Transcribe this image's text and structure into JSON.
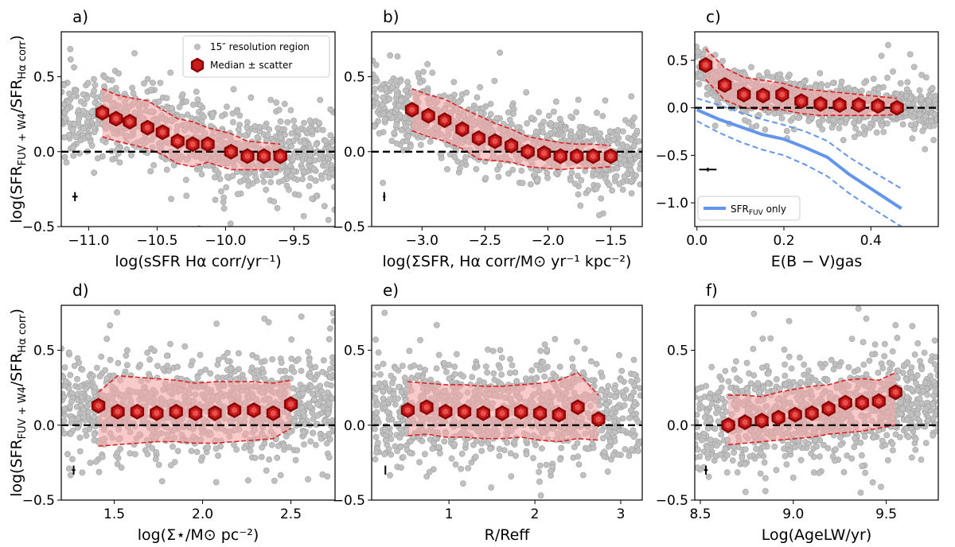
{
  "figure": {
    "ylabel": "log(SFR FUV + W4 / SFR Hα corr)",
    "ylabel_parts": {
      "pre": "log(SFR",
      "sub1": "FUV + W4",
      "mid": "/SFR",
      "sub2": "Hα corr",
      "post": ")"
    },
    "legend": {
      "scatter_label": "15″ resolution region",
      "median_label": "Median ± scatter",
      "blue_label_pre": "SFR",
      "blue_label_sub": "FUV",
      "blue_label_post": " only"
    },
    "colors": {
      "points": "#c0c0c0",
      "point_edge": "#a0a0a0",
      "median_fill": "#c81e1e",
      "median_edge": "#8b0000",
      "band_fill": "#f4a6a6",
      "band_edge": "#e02020",
      "blue": "#6495ed",
      "zero_line": "#000000"
    }
  },
  "chart_data": [
    {
      "panel": "a)",
      "type": "scatter",
      "xlabel": "log(sSFR Hα corr/yr⁻¹)",
      "xlim": [
        -11.2,
        -9.2
      ],
      "ylim": [
        -0.5,
        0.8
      ],
      "xticks": [
        -11.0,
        -10.5,
        -10.0,
        -9.5
      ],
      "xtick_labels": [
        "−11.0",
        "−10.5",
        "−10.0",
        "−9.5"
      ],
      "yticks": [
        -0.5,
        0.0,
        0.5
      ],
      "ytick_labels": [
        "−0.5",
        "0.0",
        "0.5"
      ],
      "scatter_center": [
        [
          -11.2,
          0.25
        ],
        [
          -10.9,
          0.24
        ],
        [
          -10.5,
          0.15
        ],
        [
          -10.0,
          0.02
        ],
        [
          -9.5,
          -0.03
        ],
        [
          -9.2,
          -0.03
        ]
      ],
      "scatter_sigma": 0.13,
      "scatter_count": 900,
      "errorbar": {
        "x": -11.1,
        "y": -0.3,
        "xerr": 0.02,
        "yerr": 0.03
      },
      "median": {
        "x": [
          -10.9,
          -10.8,
          -10.7,
          -10.57,
          -10.46,
          -10.35,
          -10.24,
          -10.13,
          -9.96,
          -9.84,
          -9.72,
          -9.6
        ],
        "y": [
          0.26,
          0.22,
          0.2,
          0.16,
          0.13,
          0.07,
          0.05,
          0.05,
          0.0,
          -0.03,
          -0.03,
          -0.03
        ],
        "upper": [
          0.42,
          0.38,
          0.36,
          0.34,
          0.28,
          0.22,
          0.2,
          0.16,
          0.12,
          0.07,
          0.06,
          0.05
        ],
        "lower": [
          0.1,
          0.07,
          0.05,
          0.02,
          -0.02,
          -0.08,
          -0.1,
          -0.07,
          -0.12,
          -0.12,
          -0.12,
          -0.12
        ]
      }
    },
    {
      "panel": "b)",
      "type": "scatter",
      "xlabel": "log(ΣSFR, Hα corr/M⊙ yr⁻¹ kpc⁻²)",
      "xlim": [
        -3.4,
        -1.25
      ],
      "ylim": [
        -0.5,
        0.8
      ],
      "xticks": [
        -3.0,
        -2.5,
        -2.0,
        -1.5
      ],
      "xtick_labels": [
        "−3.0",
        "−2.5",
        "−2.0",
        "−1.5"
      ],
      "yticks": [
        -0.5,
        0.0,
        0.5
      ],
      "ytick_labels": [
        "−0.5",
        "0.0",
        "0.5"
      ],
      "scatter_center": [
        [
          -3.4,
          0.32
        ],
        [
          -3.1,
          0.26
        ],
        [
          -2.6,
          0.14
        ],
        [
          -2.1,
          0.03
        ],
        [
          -1.6,
          -0.02
        ],
        [
          -1.25,
          -0.03
        ]
      ],
      "scatter_sigma": 0.12,
      "scatter_count": 900,
      "errorbar": {
        "x": -3.3,
        "y": -0.3,
        "xerr": 0.01,
        "yerr": 0.03
      },
      "median": {
        "x": [
          -3.08,
          -2.95,
          -2.82,
          -2.68,
          -2.55,
          -2.42,
          -2.29,
          -2.16,
          -2.03,
          -1.9,
          -1.77,
          -1.64,
          -1.5
        ],
        "y": [
          0.28,
          0.24,
          0.21,
          0.15,
          0.09,
          0.07,
          0.04,
          0.0,
          -0.01,
          -0.03,
          -0.03,
          -0.03,
          -0.03
        ],
        "upper": [
          0.42,
          0.38,
          0.35,
          0.29,
          0.24,
          0.19,
          0.15,
          0.1,
          0.08,
          0.06,
          0.05,
          0.05,
          0.04
        ],
        "lower": [
          0.14,
          0.1,
          0.07,
          0.02,
          -0.05,
          -0.06,
          -0.07,
          -0.1,
          -0.11,
          -0.12,
          -0.11,
          -0.11,
          -0.1
        ]
      }
    },
    {
      "panel": "c)",
      "type": "scatter",
      "xlabel": "E(B − V)gas",
      "xlim": [
        -0.005,
        0.555
      ],
      "ylim": [
        -1.25,
        0.8
      ],
      "xticks": [
        0.0,
        0.2,
        0.4
      ],
      "xtick_labels": [
        "0.0",
        "0.2",
        "0.4"
      ],
      "yticks": [
        -1.0,
        -0.5,
        0.0,
        0.5
      ],
      "ytick_labels": [
        "−1.0",
        "−0.5",
        "0.0",
        "0.5"
      ],
      "scatter_center": [
        [
          0.0,
          0.45
        ],
        [
          0.05,
          0.25
        ],
        [
          0.15,
          0.13
        ],
        [
          0.3,
          0.05
        ],
        [
          0.45,
          0.0
        ],
        [
          0.55,
          -0.02
        ]
      ],
      "scatter_sigma": 0.11,
      "scatter_count": 900,
      "errorbar": {
        "x": 0.025,
        "y": -0.65,
        "xerr": 0.02,
        "yerr": 0.02
      },
      "median": {
        "x": [
          0.02,
          0.064,
          0.108,
          0.152,
          0.196,
          0.24,
          0.284,
          0.328,
          0.372,
          0.416,
          0.46
        ],
        "y": [
          0.45,
          0.24,
          0.14,
          0.13,
          0.14,
          0.07,
          0.04,
          0.03,
          0.03,
          0.02,
          0.0
        ],
        "upper": [
          0.62,
          0.42,
          0.32,
          0.29,
          0.26,
          0.2,
          0.18,
          0.16,
          0.14,
          0.12,
          0.1
        ],
        "lower": [
          0.3,
          0.08,
          0.0,
          -0.02,
          -0.02,
          -0.06,
          -0.08,
          -0.08,
          -0.08,
          -0.08,
          -0.07
        ]
      },
      "blue_line": {
        "x": [
          0.0,
          0.05,
          0.1,
          0.15,
          0.2,
          0.25,
          0.3,
          0.35,
          0.4,
          0.47
        ],
        "y": [
          -0.02,
          -0.12,
          -0.2,
          -0.28,
          -0.33,
          -0.42,
          -0.52,
          -0.7,
          -0.85,
          -1.06
        ],
        "upper": [
          0.1,
          0.03,
          -0.05,
          -0.12,
          -0.18,
          -0.25,
          -0.35,
          -0.52,
          -0.66,
          -0.85
        ],
        "lower": [
          -0.14,
          -0.26,
          -0.36,
          -0.44,
          -0.5,
          -0.6,
          -0.72,
          -0.9,
          -1.05,
          -1.25
        ]
      }
    },
    {
      "panel": "d)",
      "type": "scatter",
      "xlabel": "log(Σ⋆/M⊙ pc⁻²)",
      "xlim": [
        1.2,
        2.75
      ],
      "ylim": [
        -0.5,
        0.8
      ],
      "xticks": [
        1.5,
        2.0,
        2.5
      ],
      "xtick_labels": [
        "1.5",
        "2.0",
        "2.5"
      ],
      "yticks": [
        -0.5,
        0.0,
        0.5
      ],
      "ytick_labels": [
        "−0.5",
        "0.0",
        "0.5"
      ],
      "scatter_center": [
        [
          1.2,
          0.12
        ],
        [
          1.75,
          0.09
        ],
        [
          2.25,
          0.1
        ],
        [
          2.75,
          0.12
        ]
      ],
      "scatter_sigma": 0.17,
      "scatter_count": 1000,
      "errorbar": {
        "x": 1.27,
        "y": -0.3,
        "xerr": 0.01,
        "yerr": 0.03
      },
      "median": {
        "x": [
          1.41,
          1.52,
          1.63,
          1.74,
          1.85,
          1.96,
          2.07,
          2.18,
          2.29,
          2.4,
          2.5
        ],
        "y": [
          0.13,
          0.09,
          0.09,
          0.08,
          0.09,
          0.08,
          0.08,
          0.1,
          0.1,
          0.08,
          0.14
        ],
        "upper": [
          0.22,
          0.33,
          0.32,
          0.31,
          0.3,
          0.28,
          0.29,
          0.29,
          0.29,
          0.28,
          0.3
        ],
        "lower": [
          -0.14,
          -0.13,
          -0.12,
          -0.11,
          -0.11,
          -0.12,
          -0.12,
          -0.11,
          -0.1,
          -0.09,
          -0.02
        ]
      }
    },
    {
      "panel": "e)",
      "type": "scatter",
      "xlabel": "R/Reff",
      "xlim": [
        0.1,
        3.25
      ],
      "ylim": [
        -0.5,
        0.8
      ],
      "xticks": [
        1,
        2,
        3
      ],
      "xtick_labels": [
        "1",
        "2",
        "3"
      ],
      "yticks": [
        -0.5,
        0.0,
        0.5
      ],
      "ytick_labels": [
        "−0.5",
        "0.0",
        "0.5"
      ],
      "scatter_center": [
        [
          0.1,
          0.1
        ],
        [
          1.5,
          0.09
        ],
        [
          2.5,
          0.1
        ],
        [
          3.25,
          0.08
        ]
      ],
      "scatter_sigma": 0.17,
      "scatter_count": 1000,
      "errorbar": {
        "x": 0.26,
        "y": -0.3,
        "xerr": 0.0,
        "yerr": 0.03
      },
      "median": {
        "x": [
          0.52,
          0.74,
          0.96,
          1.18,
          1.4,
          1.62,
          1.84,
          2.06,
          2.28,
          2.5,
          2.74
        ],
        "y": [
          0.1,
          0.12,
          0.09,
          0.09,
          0.08,
          0.08,
          0.09,
          0.08,
          0.07,
          0.12,
          0.04
        ],
        "upper": [
          0.29,
          0.28,
          0.27,
          0.27,
          0.26,
          0.26,
          0.27,
          0.28,
          0.3,
          0.35,
          0.2
        ],
        "lower": [
          -0.07,
          -0.06,
          -0.08,
          -0.08,
          -0.09,
          -0.09,
          -0.08,
          -0.1,
          -0.11,
          -0.09,
          -0.1
        ]
      }
    },
    {
      "panel": "f)",
      "type": "scatter",
      "xlabel": "Log(AgeLW/yr)",
      "xlim": [
        8.47,
        9.78
      ],
      "ylim": [
        -0.5,
        0.8
      ],
      "xticks": [
        8.5,
        9.0,
        9.5
      ],
      "xtick_labels": [
        "8.5",
        "9.0",
        "9.5"
      ],
      "yticks": [
        -0.5,
        0.0,
        0.5
      ],
      "ytick_labels": [
        "−0.5",
        "0.0",
        "0.5"
      ],
      "scatter_center": [
        [
          8.47,
          0.0
        ],
        [
          8.8,
          0.03
        ],
        [
          9.1,
          0.08
        ],
        [
          9.4,
          0.15
        ],
        [
          9.78,
          0.2
        ]
      ],
      "scatter_sigma": 0.16,
      "scatter_count": 1000,
      "errorbar": {
        "x": 8.53,
        "y": -0.3,
        "xerr": 0.01,
        "yerr": 0.03
      },
      "median": {
        "x": [
          8.65,
          8.74,
          8.83,
          8.92,
          9.01,
          9.1,
          9.19,
          9.28,
          9.37,
          9.46,
          9.55
        ],
        "y": [
          0.0,
          0.02,
          0.03,
          0.05,
          0.07,
          0.08,
          0.11,
          0.15,
          0.15,
          0.16,
          0.22
        ],
        "upper": [
          0.2,
          0.2,
          0.19,
          0.22,
          0.24,
          0.26,
          0.27,
          0.3,
          0.31,
          0.3,
          0.35
        ],
        "lower": [
          -0.13,
          -0.12,
          -0.11,
          -0.1,
          -0.09,
          -0.08,
          -0.06,
          -0.05,
          -0.04,
          -0.02,
          0.0
        ]
      }
    }
  ]
}
